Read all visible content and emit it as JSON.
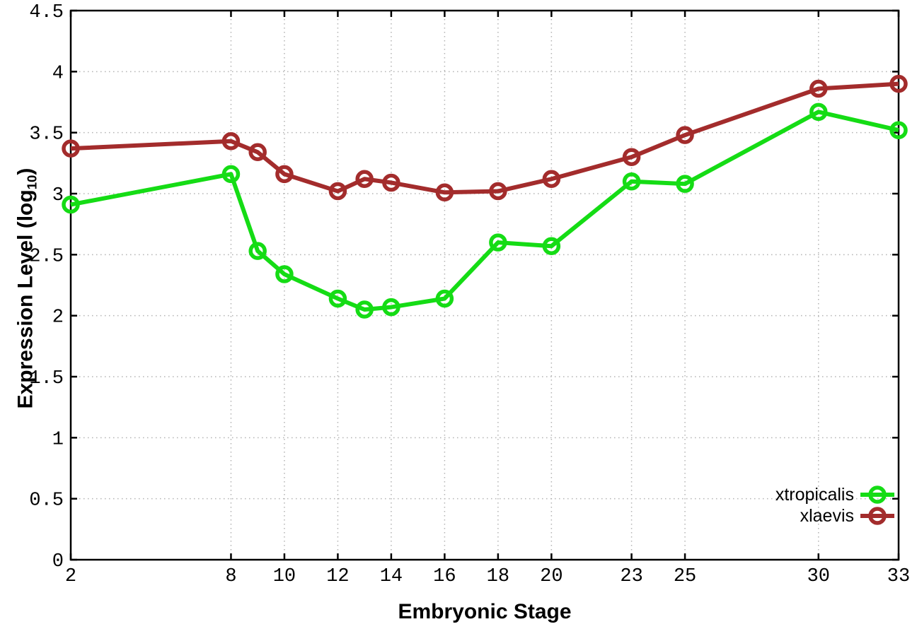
{
  "chart_data": {
    "type": "line",
    "xlabel": "Embryonic Stage",
    "ylabel": "Expression Level (log10)",
    "ylabel_parts": {
      "base": "Expression Level (log",
      "sub": "10",
      "close": ")"
    },
    "x": [
      2,
      8,
      9,
      10,
      12,
      13,
      14,
      16,
      18,
      20,
      23,
      25,
      30,
      33
    ],
    "series": [
      {
        "name": "xtropicalis",
        "color": "#15dc15",
        "values": [
          2.91,
          3.16,
          2.53,
          2.34,
          2.14,
          2.05,
          2.07,
          2.14,
          2.6,
          2.57,
          3.1,
          3.08,
          3.67,
          3.52
        ]
      },
      {
        "name": "xlaevis",
        "color": "#a32c2c",
        "values": [
          3.37,
          3.43,
          3.34,
          3.16,
          3.02,
          3.12,
          3.09,
          3.01,
          3.02,
          3.12,
          3.3,
          3.48,
          3.86,
          3.9
        ]
      }
    ],
    "xlim": [
      2,
      33
    ],
    "ylim": [
      0,
      4.5
    ],
    "x_ticks": [
      2,
      8,
      10,
      12,
      14,
      16,
      18,
      20,
      23,
      25,
      30,
      33
    ],
    "x_tick_labels": [
      "2",
      "8",
      "10",
      "12",
      "14",
      "16",
      "18",
      "20",
      "23",
      "25",
      "30",
      "33"
    ],
    "y_ticks": [
      0,
      0.5,
      1,
      1.5,
      2,
      2.5,
      3,
      3.5,
      4,
      4.5
    ],
    "y_tick_labels": [
      "0",
      "0.5",
      "1",
      "1.5",
      "2",
      "2.5",
      "3",
      "3.5",
      "4",
      "4.5"
    ],
    "grid": true,
    "legend_position": "bottom-right",
    "marker": "open-circle",
    "colors": {
      "axis": "#000000",
      "grid": "#b3b3b3",
      "background": "#ffffff",
      "text": "#000000"
    }
  }
}
